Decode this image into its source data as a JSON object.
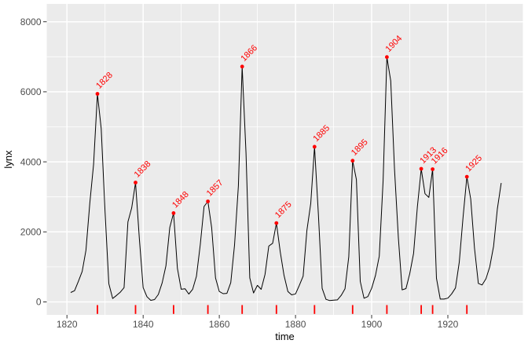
{
  "chart_data": {
    "type": "line",
    "title": "",
    "xlabel": "time",
    "ylabel": "lynx",
    "x_start": 1821,
    "series": [
      {
        "name": "lynx",
        "values": [
          269,
          321,
          585,
          871,
          1475,
          2821,
          3928,
          5943,
          4950,
          2577,
          523,
          98,
          184,
          279,
          409,
          2285,
          2685,
          3409,
          1824,
          409,
          151,
          45,
          68,
          213,
          546,
          1033,
          2129,
          2536,
          957,
          361,
          377,
          225,
          360,
          731,
          1638,
          2725,
          2871,
          2119,
          684,
          299,
          236,
          245,
          552,
          1623,
          3311,
          6721,
          4254,
          687,
          255,
          473,
          358,
          784,
          1594,
          1676,
          2251,
          1426,
          756,
          299,
          201,
          229,
          469,
          736,
          2042,
          2811,
          4431,
          2511,
          389,
          73,
          39,
          49,
          59,
          188,
          377,
          1292,
          4031,
          3495,
          587,
          105,
          153,
          387,
          758,
          1307,
          3465,
          6991,
          6313,
          3794,
          1836,
          345,
          382,
          808,
          1388,
          2713,
          3800,
          3091,
          2985,
          3790,
          674,
          81,
          80,
          108,
          229,
          399,
          1132,
          2432,
          3574,
          2935,
          1537,
          529,
          485,
          662,
          1000,
          1590,
          2657,
          3396
        ]
      }
    ],
    "peaks": [
      {
        "year": 1828,
        "value": 5943
      },
      {
        "year": 1838,
        "value": 3409
      },
      {
        "year": 1848,
        "value": 2536
      },
      {
        "year": 1857,
        "value": 2871
      },
      {
        "year": 1866,
        "value": 6721
      },
      {
        "year": 1875,
        "value": 2251
      },
      {
        "year": 1885,
        "value": 4431
      },
      {
        "year": 1895,
        "value": 4031
      },
      {
        "year": 1904,
        "value": 6991
      },
      {
        "year": 1913,
        "value": 3800
      },
      {
        "year": 1916,
        "value": 3790
      },
      {
        "year": 1925,
        "value": 3574
      }
    ],
    "xlim": [
      1814.7,
      1939.7
    ],
    "ylim": [
      -370,
      8510
    ],
    "x_ticks": [
      1820,
      1840,
      1860,
      1880,
      1900,
      1920
    ],
    "y_ticks": [
      0,
      2000,
      4000,
      6000,
      8000
    ],
    "x_minor_ticks": [
      1830,
      1850,
      1870,
      1890,
      1910,
      1930
    ],
    "y_minor_ticks": [
      1000,
      3000,
      5000,
      7000
    ],
    "grid": true,
    "legend": false,
    "colors": {
      "line": "#000000",
      "peak": "#FF0000",
      "panel": "#EBEBEB",
      "grid": "#FFFFFF",
      "axis_text": "#4D4D4D",
      "axis_tick": "#333333",
      "axis_title": "#000000",
      "background": "#FFFFFF"
    }
  }
}
